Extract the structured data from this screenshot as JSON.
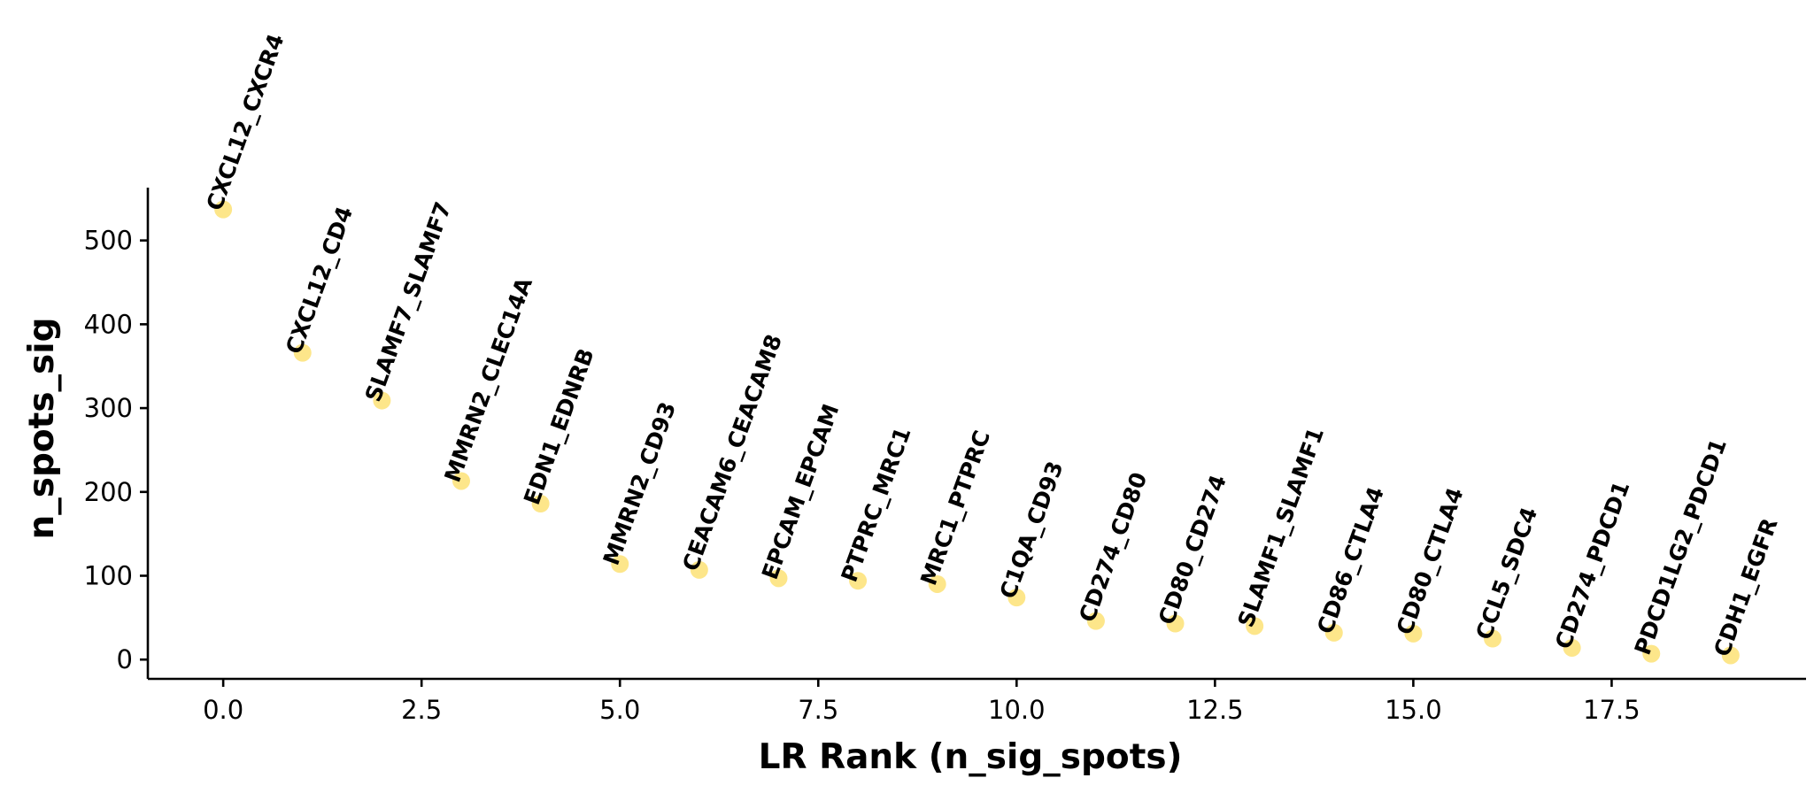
{
  "chart_data": {
    "type": "scatter",
    "title": "",
    "xlabel": "LR Rank (n_sig_spots)",
    "ylabel": "n_spots_sig",
    "xlim": [
      -0.95,
      19.95
    ],
    "ylim": [
      -23,
      563
    ],
    "xticks": [
      "0.0",
      "2.5",
      "5.0",
      "7.5",
      "10.0",
      "12.5",
      "15.0",
      "17.5"
    ],
    "yticks": [
      "0",
      "100",
      "200",
      "300",
      "400",
      "500"
    ],
    "grid": false,
    "legend": "none",
    "point_color": "#fde68a",
    "points": [
      {
        "x": 0,
        "y": 537,
        "label": "CXCL12_CXCR4"
      },
      {
        "x": 1,
        "y": 366,
        "label": "CXCL12_CD4"
      },
      {
        "x": 2,
        "y": 309,
        "label": "SLAMF7_SLAMF7"
      },
      {
        "x": 3,
        "y": 213,
        "label": "MMRN2_CLEC14A"
      },
      {
        "x": 4,
        "y": 186,
        "label": "EDN1_EDNRB"
      },
      {
        "x": 5,
        "y": 114,
        "label": "MMRN2_CD93"
      },
      {
        "x": 6,
        "y": 107,
        "label": "CEACAM6_CEACAM8"
      },
      {
        "x": 7,
        "y": 97,
        "label": "EPCAM_EPCAM"
      },
      {
        "x": 8,
        "y": 94,
        "label": "PTPRC_MRC1"
      },
      {
        "x": 9,
        "y": 90,
        "label": "MRC1_PTPRC"
      },
      {
        "x": 10,
        "y": 74,
        "label": "C1QA_CD93"
      },
      {
        "x": 11,
        "y": 46,
        "label": "CD274_CD80"
      },
      {
        "x": 12,
        "y": 43,
        "label": "CD80_CD274"
      },
      {
        "x": 13,
        "y": 40,
        "label": "SLAMF1_SLAMF1"
      },
      {
        "x": 14,
        "y": 32,
        "label": "CD86_CTLA4"
      },
      {
        "x": 15,
        "y": 31,
        "label": "CD80_CTLA4"
      },
      {
        "x": 16,
        "y": 25,
        "label": "CCL5_SDC4"
      },
      {
        "x": 17,
        "y": 14,
        "label": "CD274_PDCD1"
      },
      {
        "x": 18,
        "y": 7,
        "label": "PDCD1LG2_PDCD1"
      },
      {
        "x": 19,
        "y": 5,
        "label": "CDH1_EGFR"
      }
    ]
  }
}
